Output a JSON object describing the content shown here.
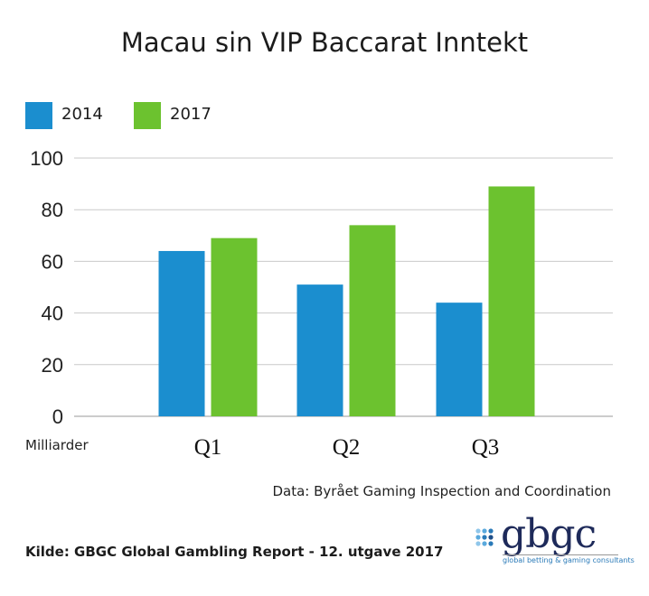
{
  "chart_data": {
    "type": "bar",
    "title": "Macau sin VIP Baccarat Inntekt",
    "categories": [
      "Q1",
      "Q2",
      "Q3"
    ],
    "series": [
      {
        "name": "2014",
        "color": "#1b8ecf",
        "values": [
          64,
          51,
          44
        ]
      },
      {
        "name": "2017",
        "color": "#6cc22f",
        "values": [
          69,
          74,
          89
        ]
      }
    ],
    "ylim": [
      0,
      100
    ],
    "yticks": [
      0,
      20,
      40,
      60,
      80,
      100
    ],
    "ylabel": "Milliarder",
    "xlabel": "",
    "grid": true,
    "legend_position": "top-left"
  },
  "source_data": "Data: Byrået Gaming Inspection and Coordination",
  "source_report": "Kilde: GBGC Global Gambling Report - 12. utgave 2017",
  "logo": {
    "text": "gbgc",
    "tagline": "global betting & gaming consultants",
    "icon": "gbgc-dots-logo-icon"
  }
}
